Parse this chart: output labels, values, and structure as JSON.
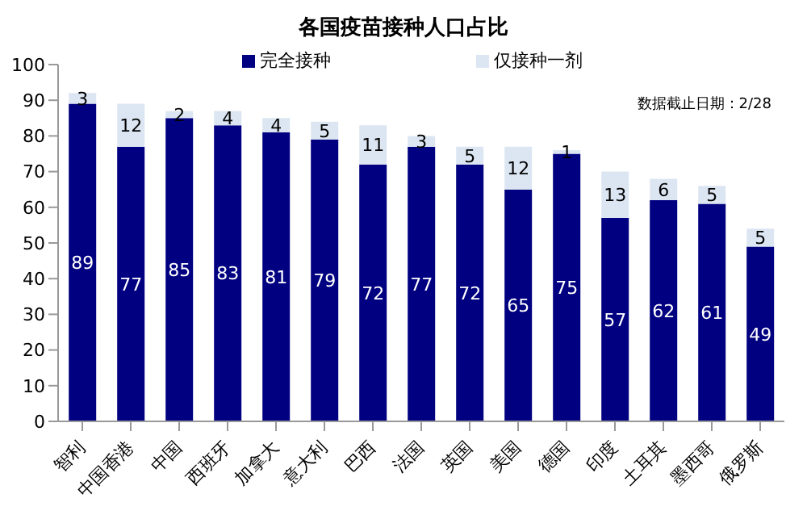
{
  "chart_data": {
    "type": "bar",
    "title": "各国疫苗接种人口占比",
    "categories": [
      "智利",
      "中国香港",
      "中国",
      "西班牙",
      "加拿大",
      "意大利",
      "巴西",
      "法国",
      "英国",
      "美国",
      "德国",
      "印度",
      "土耳其",
      "墨西哥",
      "俄罗斯"
    ],
    "series": [
      {
        "name": "完全接种",
        "color": "#000080",
        "values": [
          89,
          77,
          85,
          83,
          81,
          79,
          72,
          77,
          72,
          65,
          75,
          57,
          62,
          61,
          49
        ]
      },
      {
        "name": "仅接种一剂",
        "color": "#dce6f2",
        "values": [
          3,
          12,
          2,
          4,
          4,
          5,
          11,
          3,
          5,
          12,
          1,
          13,
          6,
          5,
          5
        ]
      }
    ],
    "stacked": true,
    "data_labels": true,
    "ylim": [
      0,
      100
    ],
    "yticks": [
      0,
      10,
      20,
      30,
      40,
      50,
      60,
      70,
      80,
      90,
      100
    ],
    "grid": false,
    "legend": "top",
    "annotations": [
      "数据截止日期：2/28"
    ]
  }
}
